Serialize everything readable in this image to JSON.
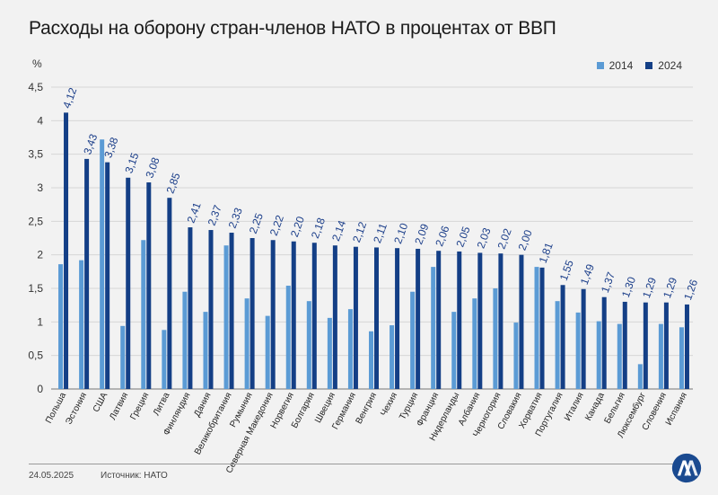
{
  "title": "Расходы на оборону стран-членов НАТО в процентах от ВВП",
  "unit": "%",
  "date": "24.05.2025",
  "source": "Источник: НАТО",
  "colors": {
    "s2014": "#5b9bd5",
    "s2024": "#143f86",
    "label": "#1c3f8a",
    "background": "#f2f2f2"
  },
  "chart_data": {
    "type": "bar",
    "title": "Расходы на оборону стран-членов НАТО в процентах от ВВП",
    "ylabel": "%",
    "ylim": [
      0,
      4.5
    ],
    "yticks": [
      "0",
      "0,5",
      "1",
      "1,5",
      "2",
      "2,5",
      "3",
      "3,5",
      "4",
      "4,5"
    ],
    "legend_position": "top-right",
    "categories": [
      "Польша",
      "Эстония",
      "США",
      "Латвия",
      "Греция",
      "Литва",
      "Финляндия",
      "Дания",
      "Великобритания",
      "Румыния",
      "Северная Македония",
      "Норвегия",
      "Болгария",
      "Швеция",
      "Германия",
      "Венгрия",
      "Чехия",
      "Турция",
      "Франция",
      "Нидерланды",
      "Албания",
      "Черногория",
      "Словакия",
      "Хорватия",
      "Португалия",
      "Италия",
      "Канада",
      "Бельгия",
      "Люксембург",
      "Словения",
      "Испания"
    ],
    "series": [
      {
        "name": "2014",
        "values": [
          1.86,
          1.92,
          3.72,
          0.94,
          2.22,
          0.88,
          1.45,
          1.15,
          2.14,
          1.35,
          1.09,
          1.54,
          1.31,
          1.06,
          1.19,
          0.86,
          0.95,
          1.45,
          1.82,
          1.15,
          1.35,
          1.5,
          0.99,
          1.82,
          1.31,
          1.14,
          1.01,
          0.97,
          0.37,
          0.97,
          0.92
        ]
      },
      {
        "name": "2024",
        "values": [
          4.12,
          3.43,
          3.38,
          3.15,
          3.08,
          2.85,
          2.41,
          2.37,
          2.33,
          2.25,
          2.22,
          2.2,
          2.18,
          2.14,
          2.12,
          2.11,
          2.1,
          2.09,
          2.06,
          2.05,
          2.03,
          2.02,
          2.0,
          1.81,
          1.55,
          1.49,
          1.37,
          1.3,
          1.29,
          1.29,
          1.26
        ]
      }
    ],
    "value_labels_2024": [
      "4,12",
      "3,43",
      "3,38",
      "3,15",
      "3,08",
      "2,85",
      "2,41",
      "2,37",
      "2,33",
      "2,25",
      "2,22",
      "2,20",
      "2,18",
      "2,14",
      "2,12",
      "2,11",
      "2,10",
      "2,09",
      "2,06",
      "2,05",
      "2,03",
      "2,02",
      "2,00",
      "1,81",
      "1,55",
      "1,49",
      "1,37",
      "1,30",
      "1,29",
      "1,29",
      "1,26"
    ]
  }
}
